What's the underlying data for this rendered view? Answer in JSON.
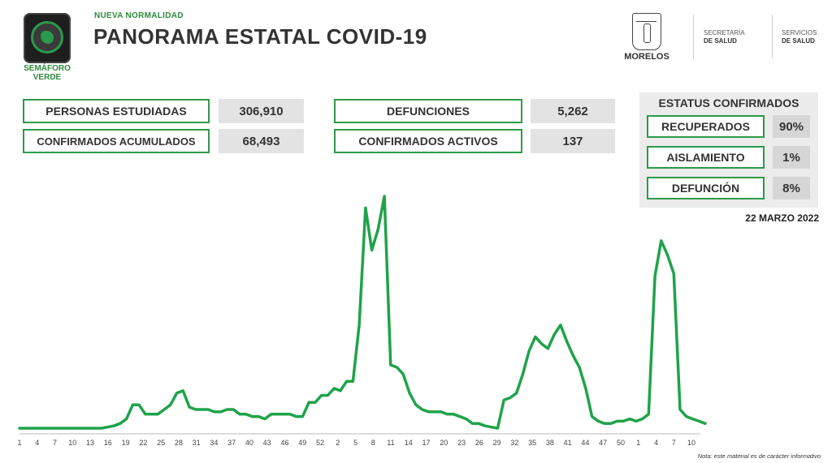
{
  "header": {
    "kicker": "NUEVA NORMALIDAD",
    "title": "PANORAMA ESTATAL COVID-19",
    "semaforo_label": "SEMÁFORO VERDE",
    "semaforo_color": "#2b9a4c",
    "state_label": "MORELOS",
    "org1_line1": "SECRETARÍA",
    "org1_line2": "DE SALUD",
    "org2_line1": "SERVICIOS",
    "org2_line2": "DE SALUD"
  },
  "stats": {
    "personas_label": "PERSONAS ESTUDIADAS",
    "personas_value": "306,910",
    "confirmados_label": "CONFIRMADOS ACUMULADOS",
    "confirmados_value": "68,493",
    "defunciones_label": "DEFUNCIONES",
    "defunciones_value": "5,262",
    "activos_label": "CONFIRMADOS ACTIVOS",
    "activos_value": "137"
  },
  "status": {
    "title": "ESTATUS CONFIRMADOS",
    "recuperados_label": "RECUPERADOS",
    "recuperados_value": "90%",
    "aislamiento_label": "AISLAMIENTO",
    "aislamiento_value": "1%",
    "defuncion_label": "DEFUNCIÓN",
    "defuncion_value": "8%"
  },
  "date": "22 MARZO 2022",
  "note": "Nota: este material es de carácter informativo",
  "chart_data": {
    "type": "line",
    "title": "",
    "xlabel": "",
    "ylabel": "",
    "line_color": "#1fa34a",
    "grid": false,
    "x_tick_labels": [
      "1",
      "4",
      "7",
      "10",
      "13",
      "16",
      "19",
      "22",
      "25",
      "28",
      "31",
      "34",
      "37",
      "40",
      "43",
      "46",
      "49",
      "52",
      "2",
      "5",
      "8",
      "11",
      "14",
      "17",
      "20",
      "23",
      "26",
      "29",
      "32",
      "35",
      "38",
      "41",
      "44",
      "47",
      "50",
      "1",
      "4",
      "7",
      "10"
    ],
    "ylim": [
      0,
      100
    ],
    "values": [
      1,
      1,
      1,
      1,
      1,
      1,
      1,
      1,
      1,
      1,
      1,
      1,
      1,
      1,
      1.5,
      2,
      3,
      5,
      11,
      11,
      7,
      7,
      7,
      9,
      11,
      16,
      17,
      10,
      9,
      9,
      9,
      8,
      8,
      9,
      9,
      7,
      7,
      6,
      6,
      5,
      7,
      7,
      7,
      7,
      6,
      6,
      12,
      12,
      15,
      15,
      18,
      17,
      21,
      21,
      45,
      95,
      77,
      86,
      100,
      28,
      27,
      24,
      16,
      11,
      9,
      8,
      8,
      8,
      7,
      7,
      6,
      5,
      3,
      3,
      2,
      1.5,
      1,
      13,
      14,
      16,
      24,
      34,
      40,
      37,
      35,
      41,
      45,
      38,
      32,
      27,
      18,
      6,
      4,
      3,
      3,
      4,
      4,
      5,
      4,
      5,
      7,
      66,
      81,
      75,
      67,
      9,
      6,
      5,
      4,
      3
    ]
  }
}
